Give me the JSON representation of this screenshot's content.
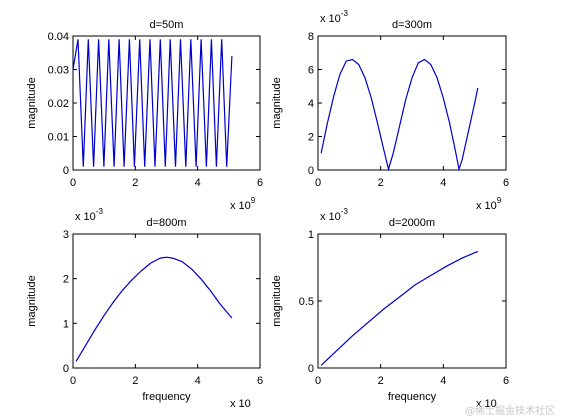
{
  "chart_data": [
    {
      "type": "line",
      "title": "d=50m",
      "xlabel": "",
      "ylabel": "magnitude",
      "xlim": [
        0,
        6
      ],
      "ylim": [
        0,
        0.04
      ],
      "xticks": [
        "0",
        "2",
        "4",
        "6"
      ],
      "yticks": [
        "0",
        "0.01",
        "0.02",
        "0.03",
        "0.04"
      ],
      "x_exponent_prefix": "x 10",
      "x_exponent": "9",
      "y_exponent_prefix": "",
      "y_exponent": "",
      "series": [
        {
          "color": "#0000cc",
          "x": [
            0.0,
            0.16,
            0.33,
            0.49,
            0.66,
            0.82,
            0.99,
            1.15,
            1.32,
            1.48,
            1.64,
            1.81,
            1.97,
            2.14,
            2.3,
            2.47,
            2.63,
            2.8,
            2.96,
            3.12,
            3.29,
            3.45,
            3.62,
            3.78,
            3.95,
            4.11,
            4.28,
            4.44,
            4.6,
            4.77,
            4.93,
            5.1
          ],
          "y": [
            0.03,
            0.039,
            0.001,
            0.039,
            0.001,
            0.039,
            0.001,
            0.039,
            0.001,
            0.039,
            0.001,
            0.039,
            0.001,
            0.039,
            0.001,
            0.039,
            0.001,
            0.039,
            0.001,
            0.039,
            0.001,
            0.039,
            0.001,
            0.039,
            0.001,
            0.039,
            0.001,
            0.039,
            0.001,
            0.039,
            0.001,
            0.034
          ]
        }
      ]
    },
    {
      "type": "line",
      "title": "d=300m",
      "xlabel": "",
      "ylabel": "magnitude",
      "xlim": [
        0,
        6
      ],
      "ylim": [
        0,
        8
      ],
      "xticks": [
        "0",
        "2",
        "4",
        "6"
      ],
      "yticks": [
        "0",
        "2",
        "4",
        "6",
        "8"
      ],
      "x_exponent_prefix": "x 10",
      "x_exponent": "9",
      "y_exponent_prefix": "x 10",
      "y_exponent": "-3",
      "series": [
        {
          "color": "#0000cc",
          "x": [
            0.1,
            0.3,
            0.5,
            0.7,
            0.9,
            1.1,
            1.3,
            1.5,
            1.7,
            1.9,
            2.1,
            2.25,
            2.4,
            2.6,
            2.8,
            3.0,
            3.2,
            3.4,
            3.6,
            3.8,
            4.0,
            4.2,
            4.4,
            4.5,
            4.6,
            4.8,
            5.0,
            5.1
          ],
          "y": [
            1.0,
            2.8,
            4.4,
            5.7,
            6.5,
            6.6,
            6.3,
            5.5,
            4.3,
            2.8,
            1.2,
            0.05,
            1.0,
            2.6,
            4.2,
            5.5,
            6.4,
            6.6,
            6.3,
            5.5,
            4.3,
            2.8,
            1.0,
            0.05,
            0.6,
            2.3,
            4.0,
            4.9
          ]
        }
      ]
    },
    {
      "type": "line",
      "title": "d=800m",
      "xlabel": "frequency",
      "ylabel": "magnitude",
      "xlim": [
        0,
        6
      ],
      "ylim": [
        0,
        3
      ],
      "xticks": [
        "0",
        "2",
        "4",
        "6"
      ],
      "yticks": [
        "0",
        "1",
        "2",
        "3"
      ],
      "x_exponent_prefix": "x 10",
      "x_exponent": "",
      "y_exponent_prefix": "x 10",
      "y_exponent": "-3",
      "series": [
        {
          "color": "#0000cc",
          "x": [
            0.1,
            0.4,
            0.7,
            1.0,
            1.3,
            1.6,
            1.9,
            2.2,
            2.5,
            2.8,
            3.0,
            3.2,
            3.5,
            3.8,
            4.1,
            4.4,
            4.7,
            5.0,
            5.1
          ],
          "y": [
            0.15,
            0.5,
            0.85,
            1.18,
            1.48,
            1.75,
            1.98,
            2.18,
            2.35,
            2.46,
            2.48,
            2.46,
            2.38,
            2.22,
            2.0,
            1.74,
            1.45,
            1.2,
            1.12
          ]
        }
      ]
    },
    {
      "type": "line",
      "title": "d=2000m",
      "xlabel": "frequency",
      "ylabel": "magnitude",
      "xlim": [
        0,
        6
      ],
      "ylim": [
        0,
        1
      ],
      "xticks": [
        "0",
        "2",
        "4",
        "6"
      ],
      "yticks": [
        "0",
        "0.5",
        "1"
      ],
      "x_exponent_prefix": "x 10",
      "x_exponent": "",
      "y_exponent_prefix": "x 10",
      "y_exponent": "-3",
      "series": [
        {
          "color": "#0000cc",
          "x": [
            0.1,
            0.6,
            1.1,
            1.6,
            2.1,
            2.6,
            3.1,
            3.6,
            4.1,
            4.6,
            5.1
          ],
          "y": [
            0.02,
            0.13,
            0.24,
            0.34,
            0.44,
            0.53,
            0.62,
            0.69,
            0.76,
            0.82,
            0.87
          ]
        }
      ]
    }
  ],
  "watermark": "@稀土掘金技术社区"
}
